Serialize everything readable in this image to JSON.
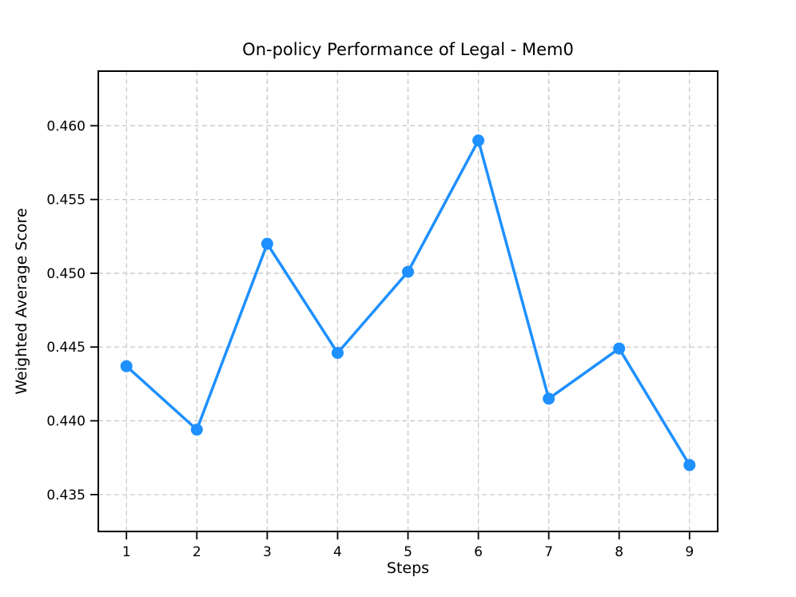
{
  "figure": {
    "background_color": "#ffffff"
  },
  "chart_data": {
    "type": "line",
    "title": "On-policy Performance of Legal - Mem0",
    "xlabel": "Steps",
    "ylabel": "Weighted Average Score",
    "x": [
      1,
      2,
      3,
      4,
      5,
      6,
      7,
      8,
      9
    ],
    "y": [
      0.4437,
      0.4394,
      0.452,
      0.4446,
      0.4501,
      0.459,
      0.4415,
      0.4449,
      0.437
    ],
    "xlim": [
      0.6,
      9.4
    ],
    "ylim": [
      0.4325,
      0.4637
    ],
    "x_ticks": [
      1,
      2,
      3,
      4,
      5,
      6,
      7,
      8,
      9
    ],
    "x_tick_labels": [
      "1",
      "2",
      "3",
      "4",
      "5",
      "6",
      "7",
      "8",
      "9"
    ],
    "y_ticks": [
      0.435,
      0.44,
      0.445,
      0.45,
      0.455,
      0.46
    ],
    "y_tick_labels": [
      "0.435",
      "0.440",
      "0.445",
      "0.450",
      "0.455",
      "0.460"
    ],
    "grid": true,
    "grid_style": "dashed",
    "legend": "none",
    "line_color": "#1E90FF",
    "marker": "circle",
    "marker_color": "#1E90FF",
    "grid_color": "#c9c9c9",
    "axis_color": "#000000",
    "text_color": "#000000"
  }
}
